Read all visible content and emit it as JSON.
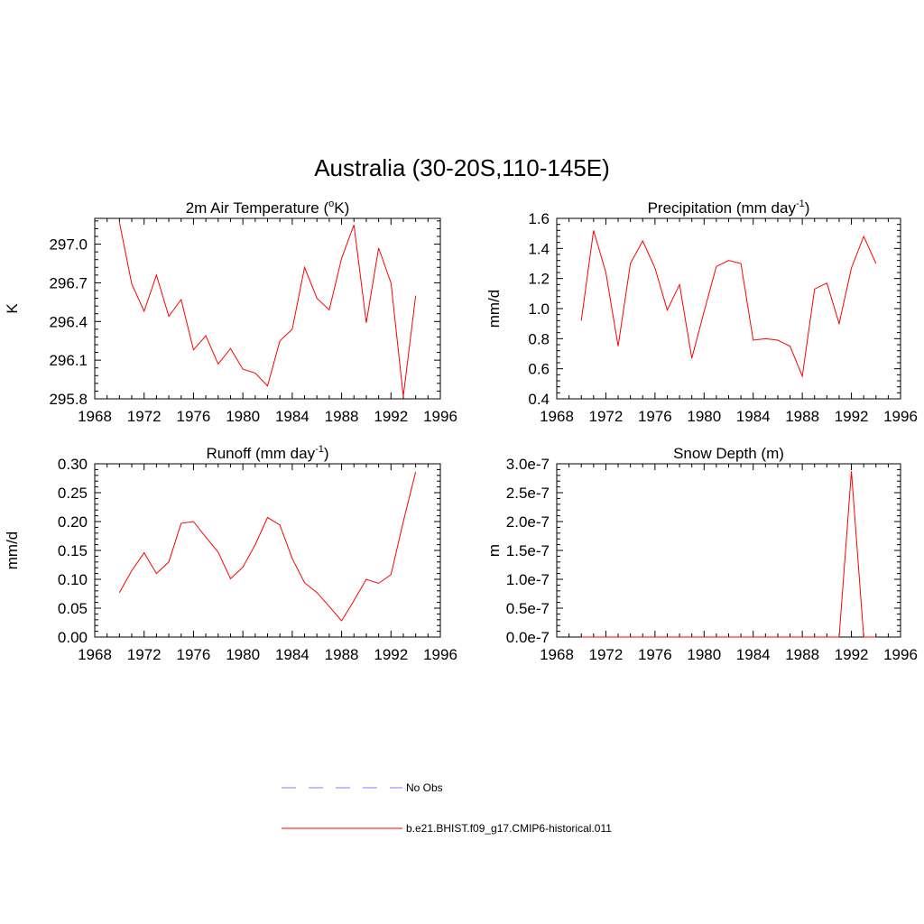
{
  "figure": {
    "title": "Australia (30-20S,110-145E)",
    "line_color": "#ff0000",
    "obs_color": "#9999ff"
  },
  "legend": {
    "entries": [
      {
        "label": "No Obs",
        "style": "dashed",
        "color": "#9999ff"
      },
      {
        "label": "b.e21.BHIST.f09_g17.CMIP6-historical.011",
        "style": "solid",
        "color": "#ff0000"
      }
    ]
  },
  "chart_data": [
    {
      "type": "line",
      "title_main": "2m Air Temperature (",
      "title_sup": "o",
      "title_tail": "K)",
      "ylabel": "K",
      "xlim": [
        1968,
        1996
      ],
      "ylim": [
        295.8,
        297.2
      ],
      "xticks": [
        1968,
        1972,
        1976,
        1980,
        1984,
        1988,
        1992,
        1996
      ],
      "yticks": [
        295.8,
        296.1,
        296.4,
        296.7,
        297.0
      ],
      "ytick_labels": [
        "295.8",
        "296.1",
        "296.4",
        "296.7",
        "297.0"
      ],
      "series": [
        {
          "x": [
            1970,
            1971,
            1972,
            1973,
            1974,
            1975,
            1976,
            1977,
            1978,
            1979,
            1980,
            1981,
            1982,
            1983,
            1984,
            1985,
            1986,
            1987,
            1988,
            1989,
            1990,
            1991,
            1992,
            1993,
            1994
          ],
          "y": [
            297.17,
            296.69,
            296.48,
            296.76,
            296.44,
            296.57,
            296.18,
            296.29,
            296.07,
            296.19,
            296.03,
            296.0,
            295.9,
            296.25,
            296.34,
            296.82,
            296.58,
            296.49,
            296.89,
            297.15,
            296.39,
            296.97,
            296.7,
            295.82,
            296.6
          ]
        }
      ]
    },
    {
      "type": "line",
      "title_main": "Precipitation (mm day",
      "title_sup": "-1",
      "title_tail": ")",
      "ylabel": "mm/d",
      "xlim": [
        1968,
        1996
      ],
      "ylim": [
        0.4,
        1.6
      ],
      "xticks": [
        1968,
        1972,
        1976,
        1980,
        1984,
        1988,
        1992,
        1996
      ],
      "yticks": [
        0.4,
        0.6,
        0.8,
        1.0,
        1.2,
        1.4,
        1.6
      ],
      "ytick_labels": [
        "0.4",
        "0.6",
        "0.8",
        "1.0",
        "1.2",
        "1.4",
        "1.6"
      ],
      "series": [
        {
          "x": [
            1970,
            1971,
            1972,
            1973,
            1974,
            1975,
            1976,
            1977,
            1978,
            1979,
            1980,
            1981,
            1982,
            1983,
            1984,
            1985,
            1986,
            1987,
            1988,
            1989,
            1990,
            1991,
            1992,
            1993,
            1994
          ],
          "y": [
            0.92,
            1.52,
            1.24,
            0.75,
            1.3,
            1.45,
            1.27,
            0.99,
            1.16,
            0.67,
            0.98,
            1.28,
            1.32,
            1.3,
            0.79,
            0.8,
            0.79,
            0.75,
            0.55,
            1.13,
            1.17,
            0.9,
            1.27,
            1.48,
            1.3
          ]
        }
      ]
    },
    {
      "type": "line",
      "title_main": "Runoff (mm day",
      "title_sup": "-1",
      "title_tail": ")",
      "ylabel": "mm/d",
      "xlim": [
        1968,
        1996
      ],
      "ylim": [
        0.0,
        0.3
      ],
      "xticks": [
        1968,
        1972,
        1976,
        1980,
        1984,
        1988,
        1992,
        1996
      ],
      "yticks": [
        0.0,
        0.05,
        0.1,
        0.15,
        0.2,
        0.25,
        0.3
      ],
      "ytick_labels": [
        "0.00",
        "0.05",
        "0.10",
        "0.15",
        "0.20",
        "0.25",
        "0.30"
      ],
      "series": [
        {
          "x": [
            1970,
            1971,
            1972,
            1973,
            1974,
            1975,
            1976,
            1977,
            1978,
            1979,
            1980,
            1981,
            1982,
            1983,
            1984,
            1985,
            1986,
            1987,
            1988,
            1989,
            1990,
            1991,
            1992,
            1993,
            1994
          ],
          "y": [
            0.077,
            0.115,
            0.146,
            0.11,
            0.13,
            0.197,
            0.2,
            0.173,
            0.147,
            0.101,
            0.121,
            0.16,
            0.207,
            0.194,
            0.136,
            0.094,
            0.077,
            0.053,
            0.028,
            0.063,
            0.1,
            0.093,
            0.108,
            0.2,
            0.286
          ]
        }
      ]
    },
    {
      "type": "line",
      "title_main": "Snow Depth (m)",
      "title_sup": "",
      "title_tail": "",
      "ylabel": "m",
      "xlim": [
        1968,
        1996
      ],
      "ylim": [
        0.0,
        3e-07
      ],
      "xticks": [
        1968,
        1972,
        1976,
        1980,
        1984,
        1988,
        1992,
        1996
      ],
      "yticks": [
        0.0,
        5e-08,
        1e-07,
        1.5e-07,
        2e-07,
        2.5e-07,
        3e-07
      ],
      "ytick_labels": [
        "0.0e-7",
        "0.5e-7",
        "1.0e-7",
        "1.5e-7",
        "2.0e-7",
        "2.5e-7",
        "3.0e-7"
      ],
      "series": [
        {
          "x": [
            1970,
            1971,
            1972,
            1973,
            1974,
            1975,
            1976,
            1977,
            1978,
            1979,
            1980,
            1981,
            1982,
            1983,
            1984,
            1985,
            1986,
            1987,
            1988,
            1989,
            1990,
            1991,
            1992,
            1993,
            1994
          ],
          "y": [
            0,
            0,
            0,
            0,
            0,
            0,
            0,
            0,
            0,
            0,
            0,
            0,
            0,
            0,
            0,
            0,
            0,
            0,
            0,
            0,
            0,
            0,
            2.87e-07,
            0,
            0
          ]
        }
      ]
    }
  ]
}
